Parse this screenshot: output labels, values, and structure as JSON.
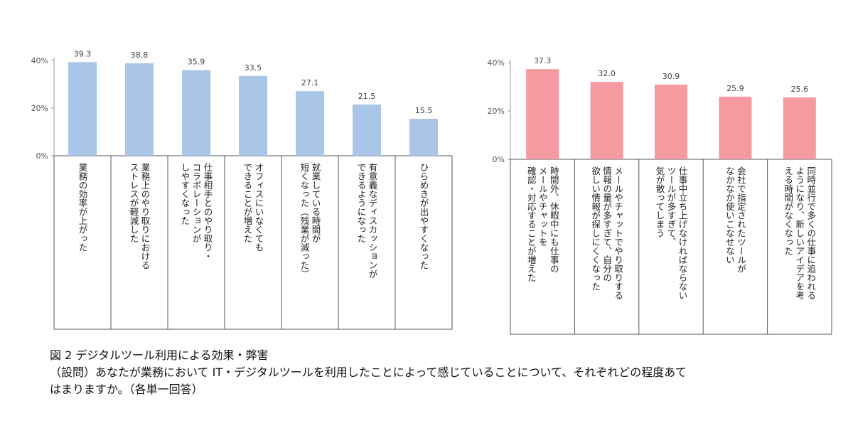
{
  "chart_data": [
    {
      "type": "bar",
      "color": "#a9c6e8",
      "yticks": [
        "0%",
        "20%",
        "40%"
      ],
      "ylim": [
        0,
        40
      ],
      "categories": [
        [
          "業務の効率が上がった"
        ],
        [
          "業務上のやり取りにおける",
          "ストレスが軽減した"
        ],
        [
          "仕事相手とのやり取り・",
          "コラボレーションが",
          "しやすくなった"
        ],
        [
          "オフィスにいなくても",
          "できることが増えた"
        ],
        [
          "就業している時間が",
          "短くなった（残業が減った）"
        ],
        [
          "有意義なディスカッションが",
          "できるようになった"
        ],
        [
          "ひらめきが出やすくなった"
        ]
      ],
      "values": [
        39.3,
        38.8,
        35.9,
        33.5,
        27.1,
        21.5,
        15.5
      ]
    },
    {
      "type": "bar",
      "color": "#f59aa0",
      "yticks": [
        "0%",
        "20%",
        "40%"
      ],
      "ylim": [
        0,
        40
      ],
      "categories": [
        [
          "時間外、休暇中にも仕事の",
          "メールやチャットを",
          "確認・対応することが増えた"
        ],
        [
          "メールやチャットでやり取りする",
          "情報の量が多すぎて、自分の",
          "欲しい情報が探しにくくなった"
        ],
        [
          "仕事中立ち上げなければならない",
          "ツールが多すぎて、",
          "気が散ってしまう"
        ],
        [
          "会社で指定されたツールが",
          "なかなか使いこなせない"
        ],
        [
          "同時並行で多くの仕事に追われる",
          "ようになり、新しいアイデアを考",
          "える時間がなくなった"
        ]
      ],
      "values": [
        37.3,
        32.0,
        30.9,
        25.9,
        25.6
      ]
    }
  ],
  "caption": {
    "title": "図 2 デジタルツール利用による効果・弊害",
    "line1": "（設問）あなたが業務において IT・デジタルツールを利用したことによって感じていることについて、それぞれどの程度あて",
    "line2": "はまりますか。（各単一回答）"
  }
}
